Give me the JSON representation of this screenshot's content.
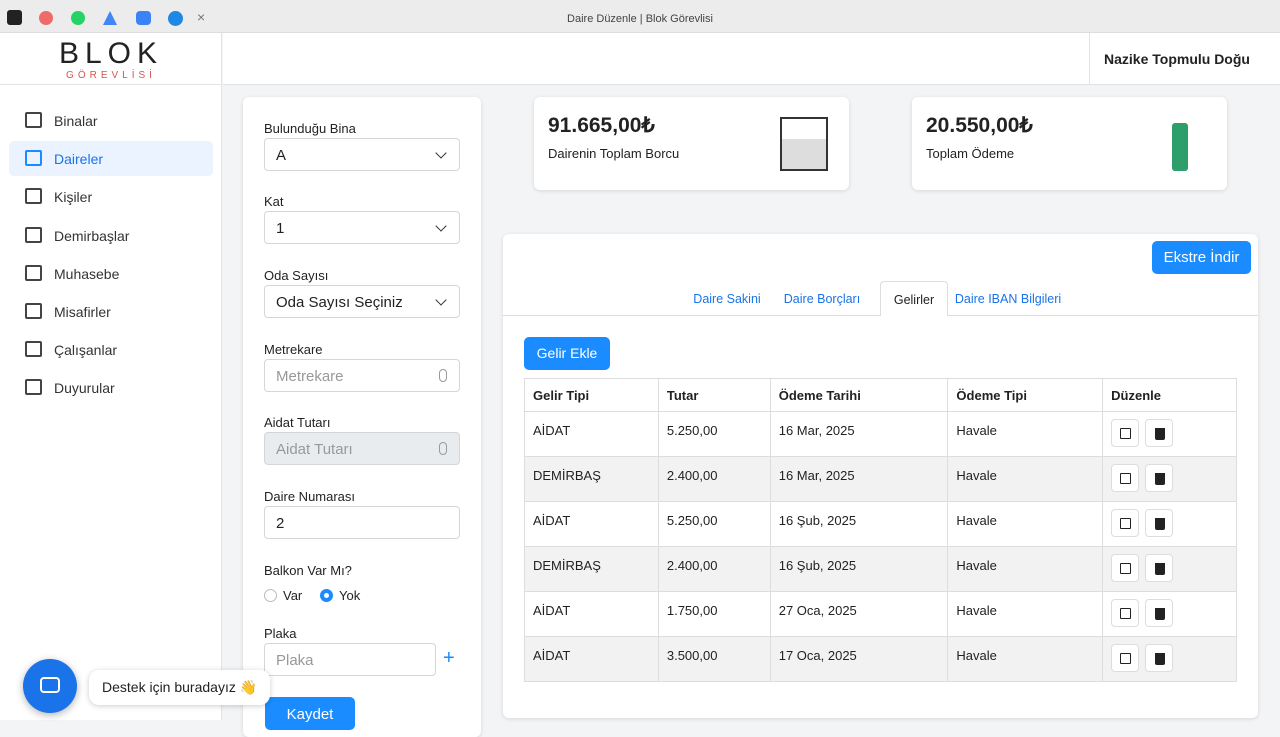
{
  "browser": {
    "tab_title": "Daire Düzenle | Blok Görevlisi"
  },
  "logo": {
    "brand": "BLOK",
    "tagline": "GÖREVLİSİ"
  },
  "user": {
    "name": "Nazike Topmulu Doğu"
  },
  "nav": {
    "items": [
      "Binalar",
      "Daireler",
      "Kişiler",
      "Demirbaşlar",
      "Muhasebe",
      "Misafirler",
      "Çalışanlar",
      "Duyurular"
    ],
    "active": 1
  },
  "form": {
    "fields": [
      {
        "label": "Bulunduğu Bina",
        "value": "A"
      },
      {
        "label": "Kat",
        "value": "1"
      },
      {
        "label": "Oda Sayısı",
        "value": "Oda Sayısı Seçiniz"
      },
      {
        "label": "Metrekare",
        "placeholder": "Metrekare"
      },
      {
        "label": "Aidat Tutarı",
        "placeholder": "Aidat Tutarı"
      },
      {
        "label": "Daire Numarası",
        "value": "2"
      },
      {
        "label": "Balkon Var Mı?",
        "options": [
          "Var",
          "Yok"
        ],
        "selected": 1
      },
      {
        "label": "Plaka",
        "placeholder": "Plaka"
      }
    ],
    "submit": "Kaydet"
  },
  "stats": [
    {
      "value": "91.665,00₺",
      "label": "Dairenin Toplam Borcu"
    },
    {
      "value": "20.550,00₺",
      "label": "Toplam Ödeme"
    }
  ],
  "panel": {
    "download": "Ekstre İndir",
    "tabs": [
      "Daire Sakini",
      "Daire Borçları",
      "Gelirler",
      "Daire IBAN Bilgileri"
    ],
    "active_tab": 2,
    "add": "Gelir Ekle",
    "table": {
      "headers": [
        "Gelir Tipi",
        "Tutar",
        "Ödeme Tarihi",
        "Ödeme Tipi",
        "Düzenle"
      ],
      "rows": [
        [
          "AİDAT",
          "5.250,00",
          "16 Mar, 2025",
          "Havale"
        ],
        [
          "DEMİRBAŞ",
          "2.400,00",
          "16 Mar, 2025",
          "Havale"
        ],
        [
          "AİDAT",
          "5.250,00",
          "16 Şub, 2025",
          "Havale"
        ],
        [
          "DEMİRBAŞ",
          "2.400,00",
          "16 Şub, 2025",
          "Havale"
        ],
        [
          "AİDAT",
          "1.750,00",
          "27 Oca, 2025",
          "Havale"
        ],
        [
          "AİDAT",
          "3.500,00",
          "17 Oca, 2025",
          "Havale"
        ]
      ]
    }
  },
  "chat": {
    "bubble": "Destek için buradayız 👋"
  }
}
